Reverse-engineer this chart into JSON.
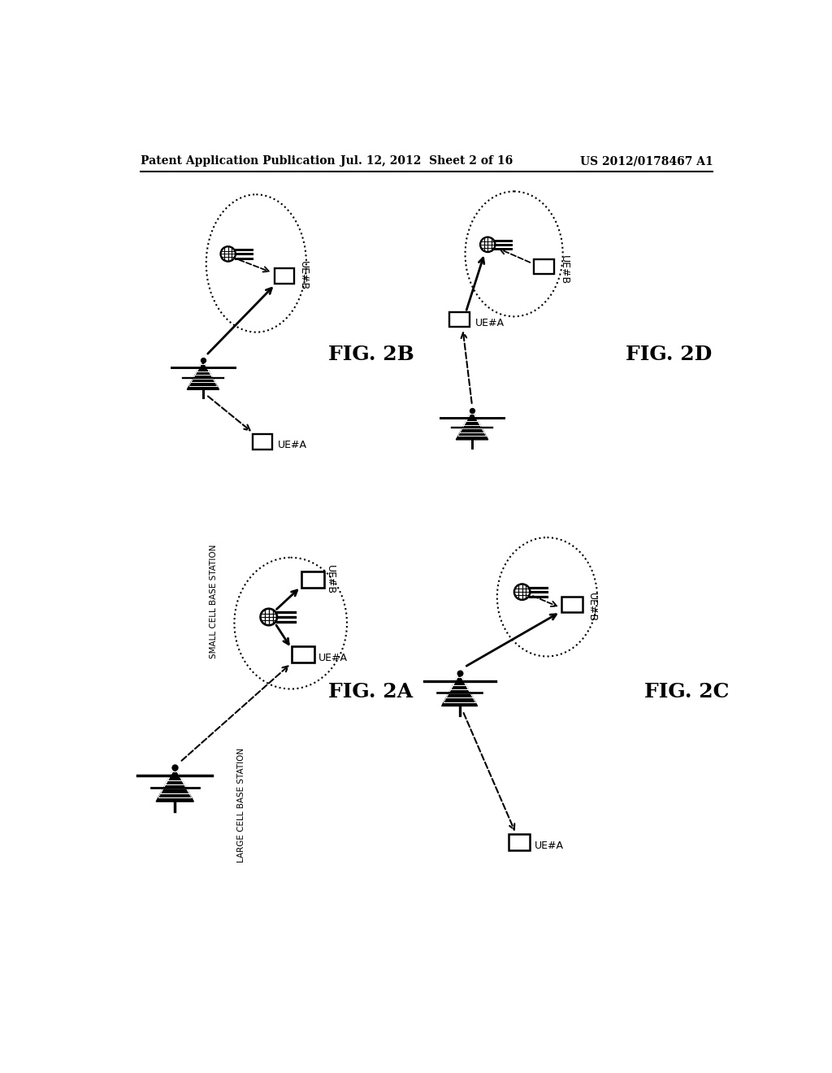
{
  "bg_color": "#ffffff",
  "header_left": "Patent Application Publication",
  "header_center": "Jul. 12, 2012  Sheet 2 of 16",
  "header_right": "US 2012/0178467 A1",
  "fig_label_fontsize": 18,
  "header_fontsize": 10
}
